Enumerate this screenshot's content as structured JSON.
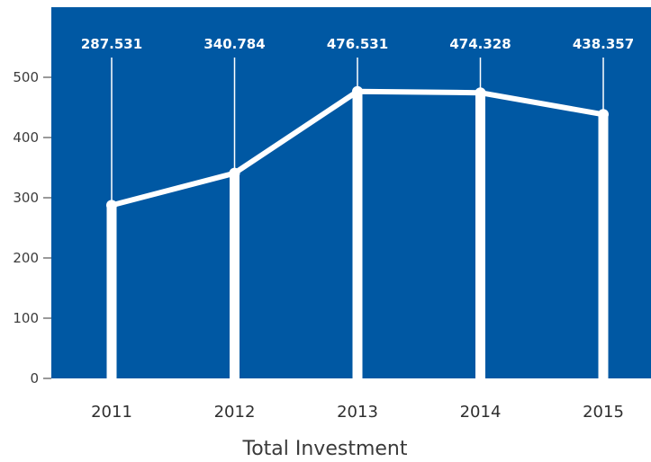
{
  "chart_data": {
    "type": "line",
    "title": "Total Investment",
    "xlabel": "",
    "ylabel": "",
    "categories": [
      "2011",
      "2012",
      "2013",
      "2014",
      "2015"
    ],
    "series": [
      {
        "values": [
          287.531,
          340.784,
          476.531,
          474.328,
          438.357
        ],
        "data_labels": [
          "287.531",
          "340.784",
          "476.531",
          "474.328",
          "438.357"
        ]
      }
    ],
    "ylim": [
      0,
      560
    ],
    "yticks": [
      0,
      100,
      200,
      300,
      400,
      500
    ],
    "ytick_labels": [
      "0",
      "100",
      "200",
      "300",
      "400",
      "500"
    ],
    "grid": false,
    "legend": "none",
    "colors": {
      "plot_background": "#0058a3",
      "line": "#ffffff",
      "text": "#3c3c3c",
      "data_label": "#ffffff"
    }
  }
}
